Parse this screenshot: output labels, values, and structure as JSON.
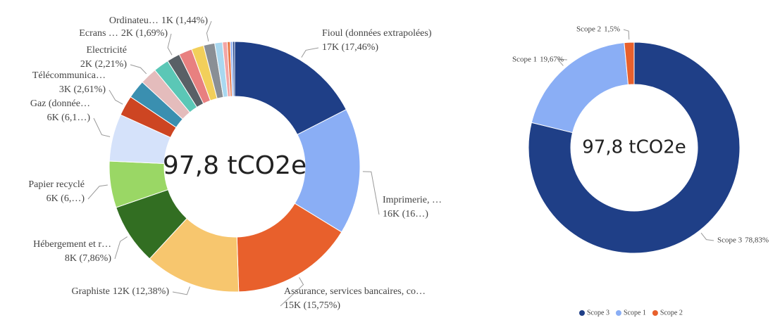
{
  "chart_data": [
    {
      "type": "donut",
      "center_label": "97,8 tCO2e",
      "categories": [
        "Fioul (données extrapolées)",
        "Imprimerie, …",
        "Assurance, services bancaires, co…",
        "Graphiste",
        "Hébergement et r…",
        "Papier recyclé",
        "Gaz (donnée…",
        "Télécommunica…",
        null,
        "Electricité",
        null,
        "Ecrans …",
        null,
        null,
        "Ordinateu…",
        null,
        null,
        null,
        null,
        null
      ],
      "values": [
        17.46,
        16.3,
        15.75,
        12.38,
        7.86,
        6.0,
        6.1,
        2.61,
        2.4,
        2.21,
        2.0,
        1.69,
        1.7,
        1.6,
        1.44,
        1.0,
        0.6,
        0.4,
        0.3,
        0.25
      ],
      "value_labels": [
        "17K (17,46%)",
        "16K (16…)",
        "15K (15,75%)",
        "12K (12,38%)",
        "8K (7,86%)",
        "6K (6,…)",
        "6K (6,1…)",
        "3K (2,61%)",
        null,
        "2K (2,21%)",
        null,
        "2K (1,69%)",
        null,
        null,
        "1K (1,44%)",
        null,
        null,
        null,
        null,
        null
      ],
      "colors": [
        "#1f3f87",
        "#8aaef5",
        "#e8602c",
        "#f7c66e",
        "#326e22",
        "#9ad765",
        "#d5e2fa",
        "#cd4522",
        "#3a8fb0",
        "#e4bcbc",
        "#5bc7b6",
        "#596066",
        "#e88080",
        "#f2cf5a",
        "#8a8f95",
        "#a9d8f0",
        "#f3a5a5",
        "#e87b4a",
        "#8aaef5",
        "#1f3f87"
      ]
    },
    {
      "type": "donut",
      "center_label": "97,8 tCO2e",
      "categories": [
        "Scope 3",
        "Scope 1",
        "Scope 2"
      ],
      "values": [
        78.83,
        19.67,
        1.5
      ],
      "value_labels": [
        "78,83%",
        "19,67%",
        "1,5%"
      ],
      "colors": [
        "#1f3f87",
        "#8aaef5",
        "#e8602c"
      ],
      "legend": "bottom"
    }
  ]
}
